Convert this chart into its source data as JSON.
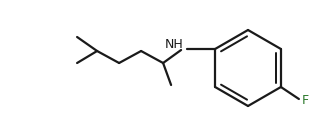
{
  "background_color": "#ffffff",
  "line_color": "#1a1a1a",
  "label_color_F": "#2d7a2d",
  "label_color_N": "#1a1a1a",
  "line_width": 1.6,
  "dpi": 100,
  "fig_width": 3.22,
  "fig_height": 1.31,
  "F_label": "F",
  "NH_label": "NH"
}
